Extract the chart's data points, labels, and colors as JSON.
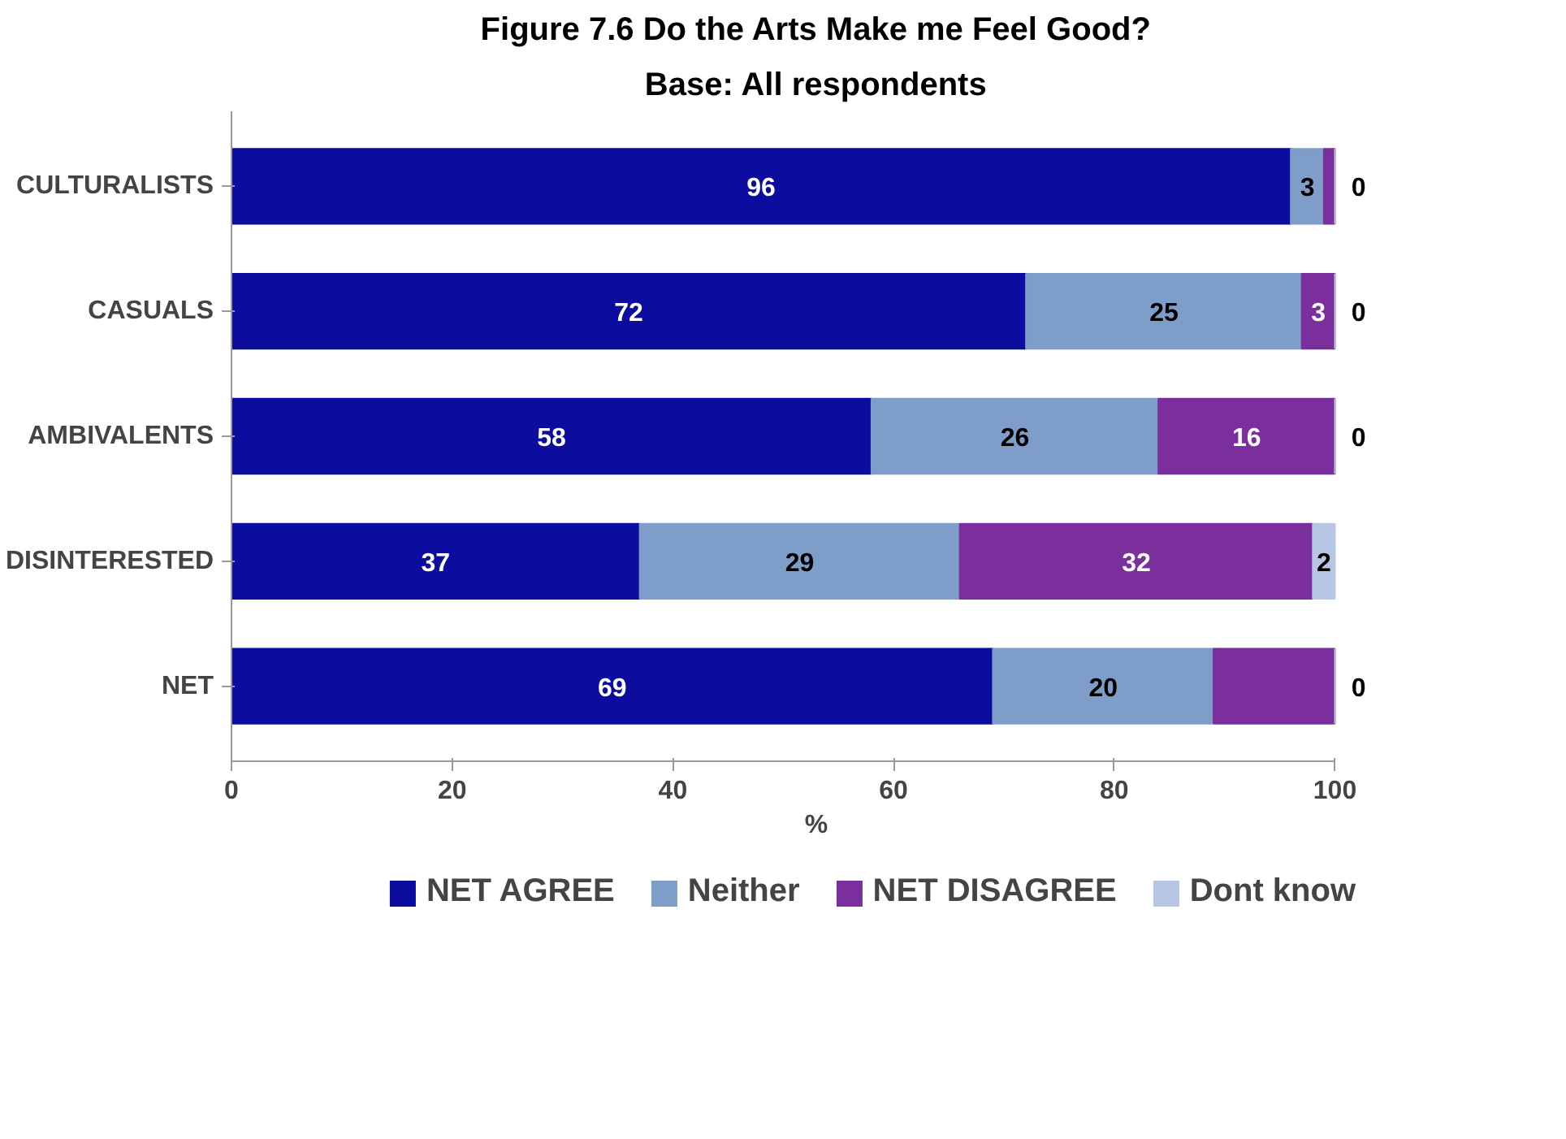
{
  "chart_data": {
    "type": "bar",
    "orientation": "horizontal",
    "stacked": true,
    "title": "Figure 7.6 Do the Arts Make me Feel Good?",
    "subtitle": "Base: All respondents",
    "xlabel": "%",
    "categories": [
      "CULTURALISTS",
      "CASUALS",
      "AMBIVALENTS",
      "DISINTERESTED",
      "NET"
    ],
    "series": [
      {
        "name": "NET AGREE",
        "color": "#0c0c9e",
        "values": [
          96,
          72,
          58,
          37,
          69
        ],
        "value_labels": [
          "96",
          "72",
          "58",
          "37",
          "69"
        ]
      },
      {
        "name": "Neither",
        "color": "#7f9dc9",
        "values": [
          3,
          25,
          26,
          29,
          20
        ],
        "value_labels": [
          "3",
          "25",
          "26",
          "29",
          "20"
        ]
      },
      {
        "name": "NET DISAGREE",
        "color": "#7a2f9c",
        "values": [
          1,
          3,
          16,
          32,
          11
        ],
        "value_labels": [
          null,
          "3",
          "16",
          "32",
          null
        ]
      },
      {
        "name": "Dont know",
        "color": "#b7c6e2",
        "values": [
          0,
          0,
          0,
          2,
          0
        ],
        "value_labels": [
          "0",
          "0",
          "0",
          "2",
          "0"
        ]
      }
    ],
    "xlim": [
      0,
      100
    ],
    "xticks": [
      0,
      20,
      40,
      60,
      80,
      100
    ],
    "grid": false,
    "legend": "bottom"
  }
}
